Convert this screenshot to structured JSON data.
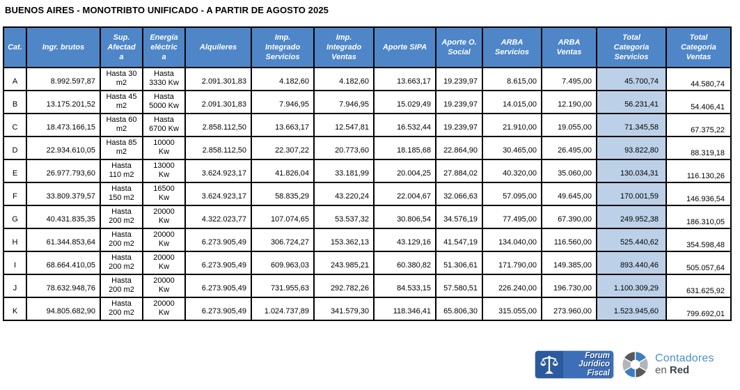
{
  "title": "BUENOS AIRES - MONOTRIBTO UNIFICADO - A PARTIR DE AGOSTO 2025",
  "colors": {
    "header_bg": "#4e86c8",
    "header_text": "#ffffff",
    "highlight_column_bg": "#bcd1e8",
    "table_border": "#000000",
    "forum_badge_bg": "#3d6fb8",
    "forum_icon_bg": "#2b5a9e",
    "contadores_blue": "#4a90c8",
    "contadores_dark_gray": "#58595b",
    "contadores_light_gray": "#b3b6b9",
    "contadores_red_text": "#3b4550"
  },
  "table": {
    "headers": [
      "Cat.",
      "Ingr. brutos",
      "Sup.\nAfectad\na",
      "Energía\neléctric\na",
      "Alquileres",
      "Imp.\nIntegrado\nServicios",
      "Imp.\nIntegrado\nVentas",
      "Aporte SIPA",
      "Aporte O.\nSocial",
      "ARBA\nServicios",
      "ARBA\nVentas",
      "Total\nCategoria\nServicios",
      "Total\nCategoria\nVentas"
    ],
    "rows": [
      [
        "A",
        "8.992.597,87",
        "Hasta 30\nm2",
        "Hasta\n3330 Kw",
        "2.091.301,83",
        "4.182,60",
        "4.182,60",
        "13.663,17",
        "19.239,97",
        "8.615,00",
        "7.495,00",
        "45.700,74",
        "44.580,74"
      ],
      [
        "B",
        "13.175.201,52",
        "Hasta 45\nm2",
        "Hasta\n5000 Kw",
        "2.091.301,83",
        "7.946,95",
        "7.946,95",
        "15.029,49",
        "19.239,97",
        "14.015,00",
        "12.190,00",
        "56.231,41",
        "54.406,41"
      ],
      [
        "C",
        "18.473.166,15",
        "Hasta 60\nm2",
        "Hasta\n6700 Kw",
        "2.858.112,50",
        "13.663,17",
        "12.547,81",
        "16.532,44",
        "19.239,97",
        "21.910,00",
        "19.055,00",
        "71.345,58",
        "67.375,22"
      ],
      [
        "D",
        "22.934.610,05",
        "Hasta 85\nm2",
        "10000\nKw",
        "2.858.112,50",
        "22.307,22",
        "20.773,60",
        "18.185,68",
        "22.864,90",
        "30.465,00",
        "26.495,00",
        "93.822,80",
        "88.319,18"
      ],
      [
        "E",
        "26.977.793,60",
        "Hasta\n110 m2",
        "13000\nKw",
        "3.624.923,17",
        "41.826,04",
        "33.181,99",
        "20.004,25",
        "27.884,02",
        "40.320,00",
        "35.060,00",
        "130.034,31",
        "116.130,26"
      ],
      [
        "F",
        "33.809.379,57",
        "Hasta\n150 m2",
        "16500\nKw",
        "3.624.923,17",
        "58.835,29",
        "43.220,24",
        "22.004,67",
        "32.066,63",
        "57.095,00",
        "49.645,00",
        "170.001,59",
        "146.936,54"
      ],
      [
        "G",
        "40.431.835,35",
        "Hasta\n200 m2",
        "20000\nKw",
        "4.322.023,77",
        "107.074,65",
        "53.537,32",
        "30.806,54",
        "34.576,19",
        "77.495,00",
        "67.390,00",
        "249.952,38",
        "186.310,05"
      ],
      [
        "H",
        "61.344.853,64",
        "Hasta\n200 m2",
        "20000\nKw",
        "6.273.905,49",
        "306.724,27",
        "153.362,13",
        "43.129,16",
        "41.547,19",
        "134.040,00",
        "116.560,00",
        "525.440,62",
        "354.598,48"
      ],
      [
        "I",
        "68.664.410,05",
        "Hasta\n200 m2",
        "20000\nKw",
        "6.273.905,49",
        "609.963,03",
        "243.985,21",
        "60.380,82",
        "51.306,61",
        "171.790,00",
        "149.385,00",
        "893.440,46",
        "505.057,64"
      ],
      [
        "J",
        "78.632.948,76",
        "Hasta\n200 m2",
        "20000\nKw",
        "6.273.905,49",
        "731.955,63",
        "292.782,26",
        "84.533,15",
        "57.580,51",
        "226.240,00",
        "196.730,00",
        "1.100.309,29",
        "631.625,92"
      ],
      [
        "K",
        "94.805.682,90",
        "Hasta\n200 m2",
        "20000\nKw",
        "6.273.905,49",
        "1.024.737,89",
        "341.579,30",
        "118.346,41",
        "65.806,30",
        "315.055,00",
        "273.960,00",
        "1.523.945,60",
        "799.692,01"
      ]
    ]
  },
  "footer": {
    "forum_logo": {
      "line1": "Forum",
      "line2": "Jurídico",
      "line3": "Fiscal"
    },
    "contadores_logo": {
      "line1": "Contadores",
      "line2_prefix": "en ",
      "line2_bold": "Red"
    }
  }
}
